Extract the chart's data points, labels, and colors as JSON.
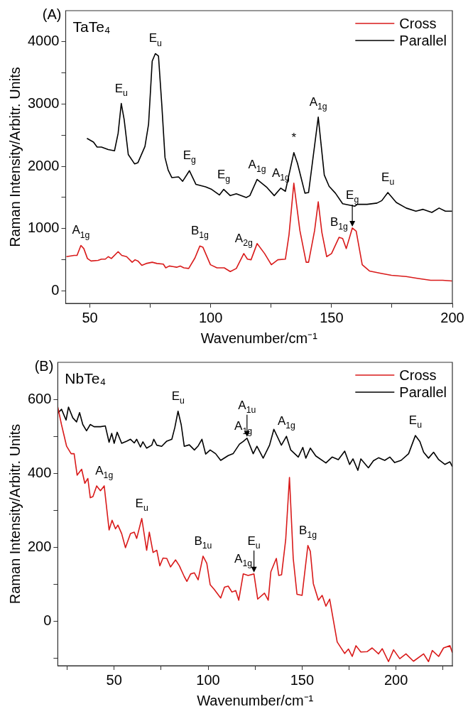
{
  "chart_data": [
    {
      "type": "line",
      "title": "(A)",
      "subtitle": "TaTe₄",
      "xlabel": "Wavenumber/cm⁻¹",
      "ylabel": "Raman Intensity/Arbitr. Units",
      "xlim": [
        40,
        200
      ],
      "xticks": [
        50,
        {
          "value": 75,
          "label": null
        },
        100,
        {
          "value": 125,
          "label": null
        },
        150,
        {
          "value": 175,
          "label": null
        },
        200
      ],
      "ylim": [
        -200,
        4500
      ],
      "yticks": [
        0,
        {
          "value": 500,
          "label": null
        },
        1000,
        {
          "value": 1500,
          "label": null
        },
        2000,
        {
          "value": 2500,
          "label": null
        },
        3000,
        {
          "value": 3500,
          "label": null
        },
        4000
      ],
      "legend": "top right",
      "marker": "none",
      "line_style": "solid",
      "series": [
        {
          "name": "Cross",
          "color": "#d91a1a",
          "x": [
            40.3,
            43.5,
            44.7,
            46.3,
            47.5,
            49,
            50.5,
            53.4,
            54.8,
            56.4,
            57.6,
            58.9,
            61.7,
            63.2,
            65.2,
            67.5,
            68.7,
            69.9,
            71.5,
            73.3,
            75.8,
            77.8,
            80.4,
            81.4,
            82.9,
            84.4,
            85.9,
            87.4,
            88.9,
            90.9,
            93.5,
            95.5,
            96.8,
            99.9,
            102.6,
            105.6,
            108.1,
            110.6,
            113.7,
            115.2,
            116.7,
            119.2,
            122.3,
            125.1,
            127.8,
            130.9,
            132.4,
            134.4,
            136.9,
            139.5,
            140.5,
            143,
            144.5,
            146,
            148,
            150,
            153.1,
            154.6,
            156.1,
            158.6,
            160.2,
            162.7,
            165.7,
            170.8,
            174.8,
            180.9,
            185.9,
            191,
            196,
            199.9
          ],
          "values": [
            550,
            570,
            570,
            730,
            680,
            520,
            480,
            490,
            510,
            510,
            550,
            520,
            630,
            570,
            550,
            460,
            500,
            480,
            410,
            440,
            460,
            440,
            430,
            370,
            400,
            390,
            380,
            400,
            370,
            360,
            530,
            720,
            700,
            420,
            370,
            370,
            310,
            360,
            600,
            510,
            500,
            760,
            600,
            420,
            500,
            510,
            900,
            1730,
            970,
            460,
            460,
            970,
            1430,
            940,
            550,
            600,
            860,
            840,
            680,
            1010,
            960,
            420,
            320,
            280,
            250,
            230,
            200,
            170,
            170,
            160
          ]
        },
        {
          "name": "Parallel",
          "color": "#000000",
          "x": [
            48.8,
            51.5,
            53,
            54.8,
            57.6,
            60.2,
            61.7,
            63,
            64.2,
            65.9,
            68.5,
            69.9,
            72.8,
            74.3,
            75.8,
            77.1,
            78.4,
            79.8,
            81.1,
            82.4,
            83.9,
            86.7,
            88.4,
            91.2,
            93.9,
            97.9,
            100.4,
            103.6,
            105.4,
            108.1,
            110.6,
            114.7,
            116.2,
            119.2,
            123.3,
            126.3,
            129,
            130.9,
            134.4,
            135.9,
            139,
            140.5,
            144.5,
            147,
            149,
            151.6,
            154.6,
            159.6,
            160.7,
            164.7,
            168.8,
            170.8,
            173.3,
            176.8,
            180.9,
            184.9,
            187.9,
            191.5,
            194.5,
            197.1,
            199.9
          ],
          "values": [
            2450,
            2390,
            2310,
            2310,
            2270,
            2250,
            2530,
            3010,
            2750,
            2190,
            2040,
            2060,
            2320,
            2680,
            3690,
            3810,
            3770,
            2970,
            2140,
            1940,
            1820,
            1830,
            1760,
            1930,
            1710,
            1670,
            1630,
            1540,
            1630,
            1530,
            1560,
            1500,
            1530,
            1790,
            1660,
            1530,
            1650,
            1600,
            2220,
            2050,
            1570,
            1580,
            2790,
            1860,
            1680,
            1570,
            1400,
            1360,
            1390,
            1390,
            1410,
            1450,
            1580,
            1420,
            1330,
            1280,
            1310,
            1260,
            1330,
            1280,
            1280
          ]
        }
      ],
      "annotations": [
        {
          "text": "E$_{u}$",
          "x": 63,
          "y": 3010
        },
        {
          "text": "E$_{u}$",
          "x": 77.1,
          "y": 3810
        },
        {
          "text": "E$_{g}$",
          "x": 91.2,
          "y": 1930
        },
        {
          "text": "E$_{g}$",
          "x": 105.4,
          "y": 1630
        },
        {
          "text": "A$_{1g}$",
          "x": 119.2,
          "y": 1790
        },
        {
          "text": "A$_{1g}$",
          "x": 129,
          "y": 1650
        },
        {
          "text": "*",
          "x": 134.4,
          "y": 2220
        },
        {
          "text": "A$_{1g}$",
          "x": 144.5,
          "y": 2790
        },
        {
          "text": "E$_{u}$",
          "x": 173.3,
          "y": 1580
        },
        {
          "text": "A$_{1g}$",
          "x": 46.3,
          "y": 730
        },
        {
          "text": "B$_{1g}$",
          "x": 95.5,
          "y": 720
        },
        {
          "text": "A$_{2g}$",
          "x": 113.7,
          "y": 600
        },
        {
          "text": "B$_{1g}$",
          "x": 153.1,
          "y": 860
        },
        {
          "text": "E$_{g}$",
          "x": 158.6,
          "y": 1010
        }
      ]
    },
    {
      "type": "line",
      "title": "(B)",
      "subtitle": "NbTe₄",
      "xlabel": "Wavenumber/cm⁻¹",
      "ylabel": "Raman Intensity/Arbitr. Units",
      "xlim": [
        20,
        230
      ],
      "xticks": [
        {
          "value": 25,
          "label": null
        },
        50,
        {
          "value": 75,
          "label": null
        },
        100,
        {
          "value": 125,
          "label": null
        },
        150,
        {
          "value": 175,
          "label": null
        },
        200,
        {
          "value": 225,
          "label": null
        }
      ],
      "ylim": [
        -120,
        700
      ],
      "yticks": [
        {
          "value": -100,
          "label": null
        },
        0,
        {
          "value": 100,
          "label": null
        },
        200,
        {
          "value": 300,
          "label": null
        },
        400,
        {
          "value": 500,
          "label": null
        },
        600
      ],
      "legend": "top right",
      "marker": "none",
      "line_style": "solid",
      "series": [
        {
          "name": "Cross",
          "color": "#d91a1a",
          "x": [
            20,
            22,
            24.7,
            27.1,
            28.7,
            30.3,
            32.7,
            34.4,
            36,
            37.3,
            38.7,
            40.7,
            42.7,
            44.7,
            47.3,
            48.9,
            50.7,
            52,
            54,
            56,
            58.7,
            60.7,
            62,
            64.7,
            67.3,
            68.7,
            70.7,
            72.7,
            74.3,
            76,
            78,
            80,
            82.7,
            84.7,
            87.3,
            88.7,
            90.7,
            92.7,
            94.7,
            97.3,
            99.3,
            101.1,
            103.3,
            106.7,
            108.7,
            110.7,
            112.7,
            114.7,
            116.3,
            118.7,
            121.3,
            124.4,
            126.4,
            130,
            132,
            133.4,
            136.3,
            137.6,
            139.1,
            141.3,
            143.3,
            145.3,
            147.3,
            150,
            153.1,
            154.4,
            156,
            158.7,
            160.7,
            162.7,
            164.7,
            168.7,
            172.7,
            174.7,
            176.7,
            178.7,
            181.3,
            184.7,
            187.3,
            190.7,
            192.7,
            196,
            198.7,
            202,
            205.3,
            209.3,
            214.7,
            217.3,
            219.3,
            222.7,
            225.3,
            228.7,
            230
          ],
          "values": [
            579,
            531,
            473,
            453,
            453,
            395,
            411,
            373,
            386,
            334,
            337,
            366,
            353,
            366,
            247,
            273,
            250,
            260,
            237,
            199,
            237,
            241,
            224,
            278,
            192,
            241,
            186,
            192,
            150,
            171,
            170,
            147,
            166,
            150,
            121,
            108,
            128,
            131,
            112,
            176,
            157,
            99,
            86,
            63,
            92,
            95,
            79,
            83,
            57,
            128,
            124,
            128,
            60,
            76,
            57,
            134,
            170,
            124,
            126,
            221,
            389,
            170,
            73,
            70,
            205,
            189,
            102,
            57,
            70,
            41,
            60,
            -56,
            -87,
            -75,
            -95,
            -66,
            -83,
            -82,
            -72,
            -88,
            -74,
            -109,
            -77,
            -101,
            -88,
            -108,
            -88,
            -109,
            -79,
            -95,
            -72,
            -66,
            -85
          ]
        },
        {
          "name": "Parallel",
          "color": "#000000",
          "x": [
            20,
            22,
            24.4,
            25.7,
            28,
            30,
            31.6,
            33.3,
            35.3,
            37.3,
            39.3,
            42.7,
            45.3,
            47.3,
            48.7,
            50,
            51.6,
            54,
            56.7,
            58.7,
            60.7,
            62,
            64,
            65.3,
            67.3,
            70,
            71.1,
            72.7,
            75.3,
            78,
            80.7,
            82.3,
            84,
            85.7,
            87.3,
            90,
            92.7,
            94.7,
            96.7,
            98.7,
            101.1,
            104,
            106.7,
            110.7,
            113.3,
            116.7,
            118.7,
            120.7,
            124,
            126,
            129.3,
            132.7,
            135,
            139,
            141.7,
            144,
            148,
            150.4,
            152,
            154.4,
            157.3,
            162.7,
            166,
            169.3,
            172.7,
            175.3,
            177.1,
            179.7,
            181.3,
            185.3,
            188,
            190.7,
            194,
            196.7,
            199.3,
            202.7,
            206.7,
            210.3,
            212.7,
            214.7,
            217.3,
            220,
            222.7,
            226,
            228.7,
            230
          ],
          "values": [
            563,
            573,
            544,
            579,
            550,
            539,
            564,
            532,
            515,
            532,
            526,
            526,
            528,
            484,
            508,
            481,
            511,
            481,
            487,
            492,
            482,
            492,
            471,
            485,
            468,
            476,
            492,
            476,
            473,
            487,
            492,
            524,
            568,
            531,
            473,
            477,
            463,
            474,
            492,
            452,
            463,
            453,
            435,
            448,
            453,
            479,
            486,
            495,
            453,
            473,
            441,
            476,
            519,
            476,
            500,
            463,
            444,
            470,
            441,
            468,
            447,
            428,
            444,
            437,
            460,
            424,
            439,
            408,
            439,
            415,
            434,
            442,
            435,
            444,
            429,
            435,
            453,
            502,
            486,
            457,
            441,
            457,
            437,
            424,
            431,
            418
          ]
        }
      ],
      "annotations": [
        {
          "text": "E$_{u}$",
          "x": 84,
          "y": 568
        },
        {
          "text": "A$_{1g}$",
          "x": 118.7,
          "y": 486
        },
        {
          "text": "A$_{1u}$",
          "x": 120.7,
          "y": 495
        },
        {
          "text": "A$_{1g}$",
          "x": 141.7,
          "y": 500
        },
        {
          "text": "E$_{u}$",
          "x": 210.3,
          "y": 502
        },
        {
          "text": "A$_{1g}$",
          "x": 44.7,
          "y": 366
        },
        {
          "text": "E$_{u}$",
          "x": 64.7,
          "y": 278
        },
        {
          "text": "B$_{1u}$",
          "x": 97.3,
          "y": 176
        },
        {
          "text": "A$_{1g}$",
          "x": 118.7,
          "y": 128
        },
        {
          "text": "E$_{u}$",
          "x": 124.4,
          "y": 128
        },
        {
          "text": "B$_{1g}$",
          "x": 153.1,
          "y": 205
        }
      ]
    }
  ]
}
